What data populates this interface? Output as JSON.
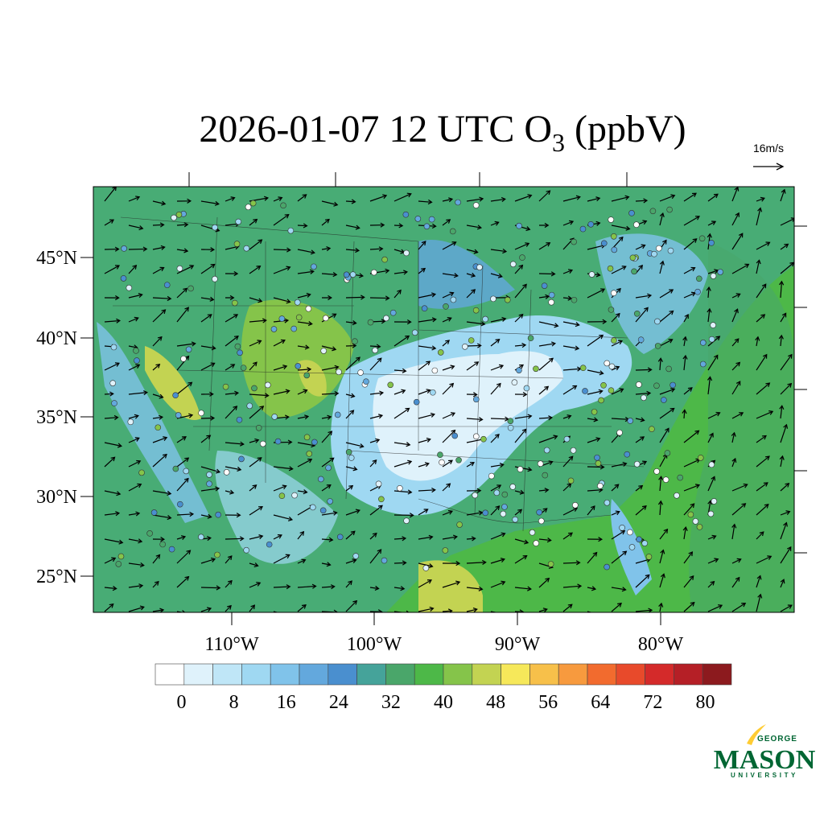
{
  "title": {
    "text": "2026-01-07 12 UTC O",
    "subscript": "3",
    "suffix": " (ppbV)"
  },
  "wind_scale": "16m/s",
  "lat_labels": [
    "45°N",
    "40°N",
    "35°N",
    "30°N",
    "25°N"
  ],
  "lon_labels": [
    "110°W",
    "100°W",
    "90°W",
    "80°W"
  ],
  "colorbar": {
    "colors": [
      "#ffffff",
      "#dff2fb",
      "#bfe6f7",
      "#9fd8f2",
      "#80c3ea",
      "#63a8dd",
      "#4a8fcf",
      "#45a39a",
      "#4aa66a",
      "#4db848",
      "#85c44a",
      "#c3d352",
      "#f6e85a",
      "#f7c04a",
      "#f79a3e",
      "#f26b2e",
      "#e84a2b",
      "#d42a2a",
      "#b51f26",
      "#8c1a1e"
    ],
    "lim": [
      -4,
      84
    ],
    "ticks": [
      0,
      8,
      16,
      24,
      32,
      40,
      48,
      56,
      64,
      72,
      80
    ]
  },
  "logo": {
    "top": "GEORGE",
    "main": "MASON",
    "bottom": "UNIVERSITY"
  }
}
